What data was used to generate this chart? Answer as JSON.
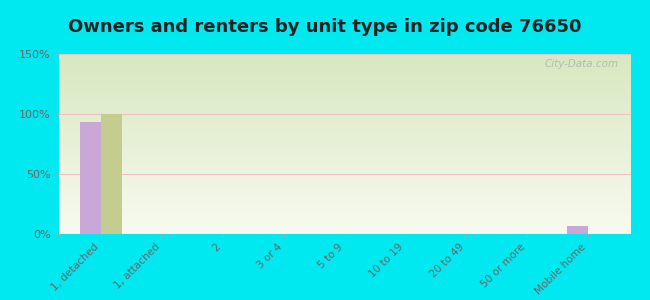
{
  "title": "Owners and renters by unit type in zip code 76650",
  "categories": [
    "1, detached",
    "1, attached",
    "2",
    "3 or 4",
    "5 to 9",
    "10 to 19",
    "20 to 49",
    "50 or more",
    "Mobile home"
  ],
  "owner_values": [
    93,
    0,
    0,
    0,
    0,
    0,
    0,
    0,
    7
  ],
  "renter_values": [
    100,
    0,
    0,
    0,
    0,
    0,
    0,
    0,
    0
  ],
  "owner_color": "#c9a8d8",
  "renter_color": "#c5cc90",
  "background_outer": "#00e8f0",
  "background_inner_top": "#d8e8c0",
  "background_inner_bottom": "#f8faf0",
  "ylim": [
    0,
    150
  ],
  "yticks": [
    0,
    50,
    100,
    150
  ],
  "ytick_labels": [
    "0%",
    "50%",
    "100%",
    "150%"
  ],
  "bar_width": 0.35,
  "title_fontsize": 13,
  "watermark": "City-Data.com"
}
